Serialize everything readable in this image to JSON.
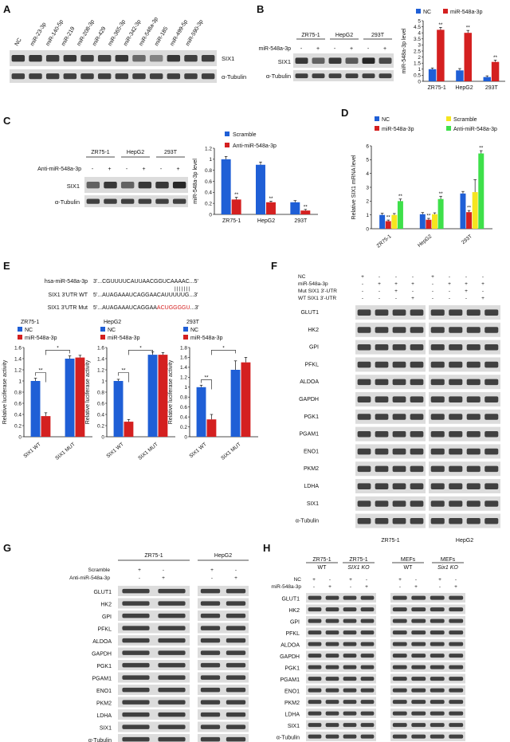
{
  "panels": {
    "A": {
      "letter": "A",
      "lanes": [
        "NC",
        "miR-23-3p",
        "miR-140-5p",
        "miR-219",
        "miR-208-3p",
        "miR-429",
        "miR-365-3p",
        "miR-342-3p",
        "miR-548a-3p",
        "miR-185",
        "miR-499-5p",
        "miR-590-3p"
      ],
      "rows": [
        "SIX1",
        "α-Tubulin"
      ],
      "six1_intensity": [
        0.85,
        0.85,
        0.8,
        0.85,
        0.8,
        0.8,
        0.85,
        0.55,
        0.4,
        0.85,
        0.8,
        0.8
      ]
    },
    "B": {
      "letter": "B",
      "groups": [
        "ZR75-1",
        "HepG2",
        "293T"
      ],
      "row_label": "miR-548a-3p",
      "signs": [
        "-",
        "+",
        "-",
        "+",
        "-",
        "+"
      ],
      "rows": [
        "SIX1",
        "α-Tubulin"
      ],
      "six1_intensity": [
        0.85,
        0.6,
        0.85,
        0.65,
        0.95,
        0.75
      ]
    },
    "C": {
      "letter": "C",
      "groups": [
        "ZR75-1",
        "HepG2",
        "293T"
      ],
      "row_label": "Anti-miR-548a-3p",
      "signs": [
        "-",
        "+",
        "-",
        "+",
        "-",
        "+"
      ],
      "rows": [
        "SIX1",
        "α-Tubulin"
      ],
      "six1_intensity": [
        0.6,
        0.85,
        0.6,
        0.85,
        0.85,
        0.95
      ]
    },
    "D": {
      "letter": "D"
    },
    "E": {
      "letter": "E",
      "seq_rows": [
        {
          "label": "hsa-miR-548a-3p",
          "pre": "3'...CGUUUUCAUUAACGGUCAAAAC...5'",
          "hl": "",
          "post": ""
        },
        {
          "label": "",
          "pre": "|||||||",
          "hl": "",
          "post": ""
        },
        {
          "label": "SIX1 3'UTR WT",
          "pre": "5'...AUAGAAAUCAGGAACAUUUUUG...3'",
          "hl": "",
          "post": ""
        },
        {
          "label": "SIX1 3'UTR Mut",
          "pre": "5'...AUAGAAAUCAGGAA",
          "hl": "ACUGGGGU",
          "post": "...3'"
        }
      ],
      "sub_titles": [
        "ZR75-1",
        "HepG2",
        "293T"
      ]
    },
    "F": {
      "letter": "F",
      "cond_labels": [
        "NC",
        "miR-548a-3p",
        "Mut SIX1 3'-UTR",
        "WT SIX1 3'-UTR"
      ],
      "signs": [
        [
          "+",
          "-",
          "-",
          "-",
          "+",
          "-",
          "-",
          "-"
        ],
        [
          "-",
          "+",
          "+",
          "+",
          "-",
          "+",
          "+",
          "+"
        ],
        [
          "-",
          "-",
          "+",
          "-",
          "-",
          "-",
          "+",
          "-"
        ],
        [
          "-",
          "-",
          "-",
          "+",
          "-",
          "-",
          "-",
          "+"
        ]
      ],
      "rows": [
        "GLUT1",
        "HK2",
        "GPI",
        "PFKL",
        "ALDOA",
        "GAPDH",
        "PGK1",
        "PGAM1",
        "ENO1",
        "PKM2",
        "LDHA",
        "SIX1",
        "α-Tubulin"
      ],
      "groups": [
        "ZR75-1",
        "HepG2"
      ]
    },
    "G": {
      "letter": "G",
      "groups": [
        "ZR75-1",
        "HepG2"
      ],
      "cond_labels": [
        "Scramble",
        "Anti-miR-548a-3p"
      ],
      "signs": [
        [
          "+",
          "-",
          "+",
          "-"
        ],
        [
          "-",
          "+",
          "-",
          "+"
        ]
      ],
      "rows": [
        "GLUT1",
        "HK2",
        "GPI",
        "PFKL",
        "ALDOA",
        "GAPDH",
        "PGK1",
        "PGAM1",
        "ENO1",
        "PKM2",
        "LDHA",
        "SIX1",
        "α-Tubulin"
      ]
    },
    "H": {
      "letter": "H",
      "groups": [
        [
          "ZR75-1",
          "WT"
        ],
        [
          "ZR75-1",
          "SIX1 KO"
        ],
        [
          "MEFs",
          "WT"
        ],
        [
          "MEFs",
          "Six1 KO"
        ]
      ],
      "cond_labels": [
        "NC",
        "miR-548a-3p"
      ],
      "signs": [
        [
          "+",
          "-",
          "+",
          "-",
          "+",
          "-",
          "+",
          "-"
        ],
        [
          "-",
          "+",
          "-",
          "+",
          "-",
          "+",
          "-",
          "+"
        ]
      ],
      "rows": [
        "GLUT1",
        "HK2",
        "GPI",
        "PFKL",
        "ALDOA",
        "GAPDH",
        "PGK1",
        "PGAM1",
        "ENO1",
        "PKM2",
        "LDHA",
        "SIX1",
        "α-Tubulin"
      ]
    }
  },
  "chart_data": [
    {
      "id": "B",
      "type": "bar",
      "categories": [
        "ZR75-1",
        "HepG2",
        "293T"
      ],
      "series": [
        {
          "name": "NC",
          "color": "#1f5fd6",
          "values": [
            1.0,
            0.9,
            0.35
          ],
          "errors": [
            0.1,
            0.15,
            0.1
          ]
        },
        {
          "name": "miR-548a-3p",
          "color": "#d42020",
          "values": [
            4.25,
            4.0,
            1.6
          ],
          "errors": [
            0.2,
            0.2,
            0.15
          ]
        }
      ],
      "ylabel": "miR-548a-3p level",
      "ylim": [
        0,
        5
      ],
      "yticks": [
        0,
        0.5,
        1,
        1.5,
        2,
        2.5,
        3,
        3.5,
        4,
        4.5,
        5
      ],
      "sig": [
        {
          "cat": 0,
          "text": "**"
        },
        {
          "cat": 1,
          "text": "**"
        },
        {
          "cat": 2,
          "text": "**"
        }
      ],
      "legend": "top",
      "grid": false
    },
    {
      "id": "C",
      "type": "bar",
      "categories": [
        "ZR75-1",
        "HepG2",
        "293T"
      ],
      "series": [
        {
          "name": "Scramble",
          "color": "#1f5fd6",
          "values": [
            1.0,
            0.9,
            0.22
          ],
          "errors": [
            0.05,
            0.05,
            0.03
          ]
        },
        {
          "name": "Anti-miR-548a-3p",
          "color": "#d42020",
          "values": [
            0.27,
            0.22,
            0.07
          ],
          "errors": [
            0.04,
            0.02,
            0.02
          ]
        }
      ],
      "ylabel": "miR-548a-3p level",
      "ylim": [
        0,
        1.2
      ],
      "yticks": [
        0,
        0.2,
        0.4,
        0.6,
        0.8,
        1.0,
        1.2
      ],
      "sig": [
        {
          "cat": 0,
          "text": "**"
        },
        {
          "cat": 1,
          "text": "**"
        },
        {
          "cat": 2,
          "text": "**"
        }
      ],
      "legend": "top",
      "grid": false
    },
    {
      "id": "D",
      "type": "bar",
      "categories": [
        "ZR75-1",
        "HepG2",
        "293T"
      ],
      "series": [
        {
          "name": "NC",
          "color": "#1f5fd6",
          "values": [
            1.0,
            1.05,
            2.55
          ],
          "errors": [
            0.12,
            0.12,
            0.15
          ]
        },
        {
          "name": "miR-548a-3p",
          "color": "#d42020",
          "values": [
            0.55,
            0.65,
            1.2
          ],
          "errors": [
            0.08,
            0.1,
            0.12
          ]
        },
        {
          "name": "Scramble",
          "color": "#f5e51f",
          "values": [
            1.0,
            1.05,
            2.65
          ],
          "errors": [
            0.1,
            0.1,
            0.9
          ]
        },
        {
          "name": "Anti-miR-548a-3p",
          "color": "#3ee04a",
          "values": [
            2.0,
            2.15,
            5.45
          ],
          "errors": [
            0.15,
            0.2,
            0.2
          ]
        }
      ],
      "ylabel": "Relative SIX1 mRNA level",
      "ylim": [
        0,
        6
      ],
      "yticks": [
        0,
        1,
        2,
        3,
        4,
        5,
        6
      ],
      "sig": [
        {
          "cat": 0,
          "text": "**",
          "series": 1
        },
        {
          "cat": 0,
          "text": "**",
          "series": 3
        },
        {
          "cat": 1,
          "text": "**",
          "series": 1
        },
        {
          "cat": 1,
          "text": "**",
          "series": 3
        },
        {
          "cat": 2,
          "text": "**",
          "series": 1
        },
        {
          "cat": 2,
          "text": "**",
          "series": 3
        }
      ],
      "legend": "top",
      "grid": false
    },
    {
      "id": "E1",
      "type": "bar",
      "title": "ZR75-1",
      "categories": [
        "SIX1 WT",
        "SIX1 MUT"
      ],
      "series": [
        {
          "name": "NC",
          "color": "#1f5fd6",
          "values": [
            1.0,
            1.4
          ],
          "errors": [
            0.05,
            0.05
          ]
        },
        {
          "name": "miR-548a-3p",
          "color": "#d42020",
          "values": [
            0.37,
            1.42
          ],
          "errors": [
            0.06,
            0.04
          ]
        }
      ],
      "ylabel": "Relative luciferase activity",
      "ylim": [
        0,
        1.6
      ],
      "yticks": [
        0,
        0.2,
        0.4,
        0.6,
        0.8,
        1.0,
        1.2,
        1.4,
        1.6
      ],
      "brackets": [
        {
          "text": "**",
          "type": "within"
        },
        {
          "text": "*",
          "type": "across"
        }
      ],
      "legend": "top-left",
      "grid": false
    },
    {
      "id": "E2",
      "type": "bar",
      "title": "HepG2",
      "categories": [
        "SIX1 WT",
        "SIX1 MUT"
      ],
      "series": [
        {
          "name": "NC",
          "color": "#1f5fd6",
          "values": [
            1.0,
            1.47
          ],
          "errors": [
            0.03,
            0.05
          ]
        },
        {
          "name": "miR-548a-3p",
          "color": "#d42020",
          "values": [
            0.27,
            1.47
          ],
          "errors": [
            0.04,
            0.04
          ]
        }
      ],
      "ylabel": "Relative luciferase activity",
      "ylim": [
        0,
        1.6
      ],
      "yticks": [
        0,
        0.2,
        0.4,
        0.6,
        0.8,
        1.0,
        1.2,
        1.4,
        1.6
      ],
      "brackets": [
        {
          "text": "**",
          "type": "within"
        },
        {
          "text": "*",
          "type": "across"
        }
      ],
      "legend": "top-left",
      "grid": false
    },
    {
      "id": "E3",
      "type": "bar",
      "title": "293T",
      "categories": [
        "SIX1 WT",
        "SIX1 MUT"
      ],
      "series": [
        {
          "name": "NC",
          "color": "#1f5fd6",
          "values": [
            1.0,
            1.35
          ],
          "errors": [
            0.04,
            0.18
          ]
        },
        {
          "name": "miR-548a-3p",
          "color": "#d42020",
          "values": [
            0.35,
            1.5
          ],
          "errors": [
            0.1,
            0.1
          ]
        }
      ],
      "ylabel": "Relative luciferase activity",
      "ylim": [
        0,
        1.8
      ],
      "yticks": [
        0,
        0.2,
        0.4,
        0.6,
        0.8,
        1.0,
        1.2,
        1.4,
        1.6,
        1.8
      ],
      "brackets": [
        {
          "text": "**",
          "type": "within"
        },
        {
          "text": "*",
          "type": "across"
        }
      ],
      "legend": "top-left",
      "grid": false
    }
  ]
}
